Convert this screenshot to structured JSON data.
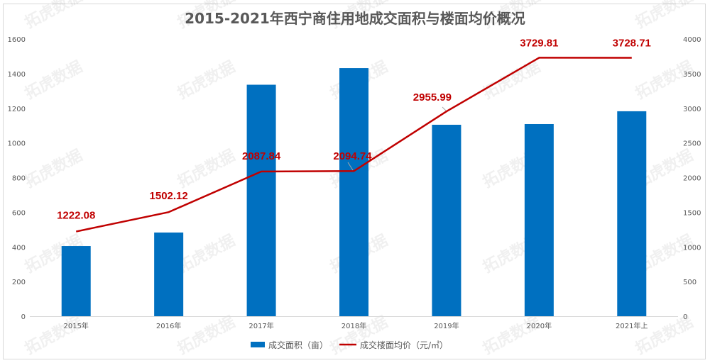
{
  "chart_title": "2015-2021年西宁商住用地成交面积与楼面均价概况",
  "watermark_text": "拓虎数据",
  "colors": {
    "bar": "#0070C0",
    "line": "#C00000",
    "axis_text": "#595959",
    "gridline": "#d9d9d9"
  },
  "legend": {
    "bar_label": "成交面积（亩）",
    "line_label": "成交楼面均价（元/㎡）"
  },
  "chart_data": {
    "type": "bar+line",
    "title": "2015-2021年西宁商住用地成交面积与楼面均价概况",
    "categories": [
      "2015年",
      "2016年",
      "2017年",
      "2018年",
      "2019年",
      "2020年",
      "2021年上"
    ],
    "series": [
      {
        "name": "成交面积（亩）",
        "type": "bar",
        "axis": "left",
        "values": [
          405,
          483,
          1336,
          1432,
          1105,
          1109,
          1183
        ]
      },
      {
        "name": "成交楼面均价（元/㎡）",
        "type": "line",
        "axis": "right",
        "values": [
          1222.08,
          1502.12,
          2087.84,
          2094.74,
          2955.99,
          3729.81,
          3728.71
        ],
        "labels": [
          "1222.08",
          "1502.12",
          "2087.84",
          "2094.74",
          "2955.99",
          "3729.81",
          "3728.71"
        ]
      }
    ],
    "left_axis": {
      "ylim": [
        0,
        1600
      ],
      "ticks": [
        "0",
        "200",
        "400",
        "600",
        "800",
        "1000",
        "1200",
        "1400",
        "1600"
      ]
    },
    "right_axis": {
      "ylim": [
        0,
        4000
      ],
      "ticks": [
        "0",
        "500",
        "1000",
        "1500",
        "2000",
        "2500",
        "3000",
        "3500",
        "4000"
      ]
    },
    "grid": false,
    "legend_position": "bottom"
  }
}
